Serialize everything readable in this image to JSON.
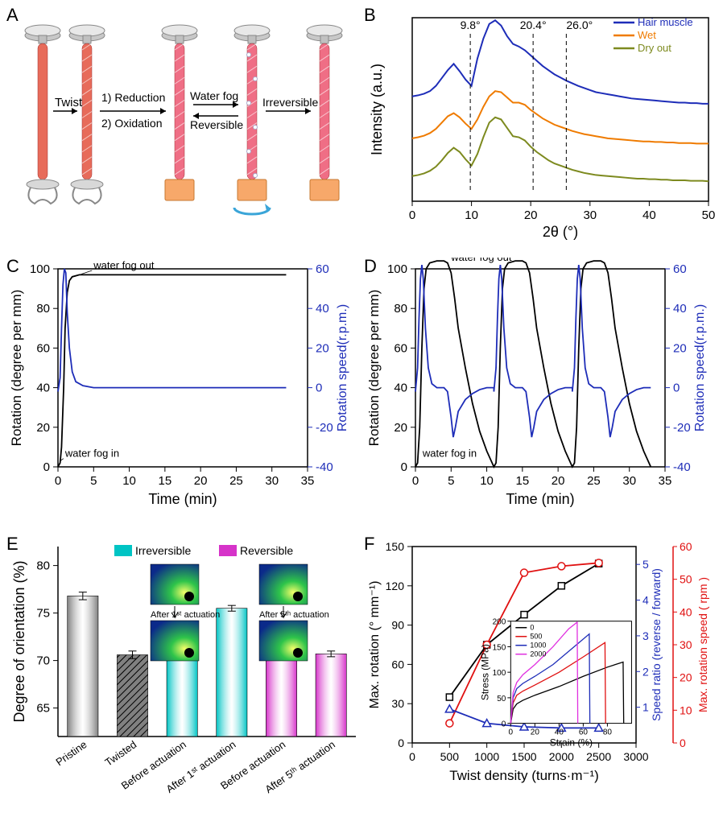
{
  "panels": {
    "A": {
      "label": "A",
      "arrows": [
        {
          "label": "Twist"
        },
        {
          "label_top": "1) Reduction",
          "label_bottom": "2) Oxidation"
        },
        {
          "label_top": "Water fog",
          "label_bottom": "Reversible"
        },
        {
          "label": "Irreversible"
        }
      ]
    },
    "B": {
      "label": "B",
      "type": "xrd-line",
      "xlabel": "2θ (°)",
      "ylabel": "Intensity (a.u.)",
      "xlim": [
        0,
        50
      ],
      "xticks": [
        0,
        10,
        20,
        30,
        40,
        50
      ],
      "peaks": [
        "9.8°",
        "20.4°",
        "26.0°"
      ],
      "peak_x": [
        9.8,
        20.4,
        26.0
      ],
      "legend": [
        {
          "label": "Hair muscle",
          "color": "#1e2db8"
        },
        {
          "label": "Wet",
          "color": "#ef7b00"
        },
        {
          "label": "Dry out",
          "color": "#7d8a1f"
        }
      ],
      "curves": {
        "hair": {
          "color": "#1e2db8",
          "offset": 140,
          "y": [
            60,
            62,
            65,
            70,
            80,
            95,
            110,
            122,
            108,
            92,
            80,
            132,
            170,
            198,
            205,
            195,
            175,
            160,
            155,
            148,
            138,
            128,
            118,
            110,
            102,
            96,
            90,
            85,
            80,
            76,
            72,
            68,
            66,
            64,
            62,
            60,
            58,
            56,
            55,
            54,
            53,
            52,
            51,
            50,
            49,
            48,
            48,
            47,
            47,
            46,
            46
          ]
        },
        "wet": {
          "color": "#ef7b00",
          "offset": 70,
          "y": [
            50,
            52,
            55,
            60,
            68,
            80,
            92,
            98,
            90,
            78,
            68,
            86,
            110,
            130,
            140,
            138,
            128,
            118,
            118,
            114,
            104,
            96,
            88,
            82,
            76,
            72,
            68,
            64,
            61,
            58,
            56,
            54,
            52,
            50,
            49,
            48,
            47,
            46,
            45,
            44,
            44,
            43,
            43,
            42,
            42,
            41,
            41,
            41,
            40,
            40,
            40
          ]
        },
        "dry": {
          "color": "#7d8a1f",
          "offset": 0,
          "y": [
            48,
            50,
            53,
            58,
            66,
            78,
            92,
            102,
            94,
            80,
            68,
            90,
            122,
            150,
            160,
            156,
            140,
            124,
            122,
            116,
            104,
            94,
            86,
            78,
            72,
            68,
            64,
            60,
            57,
            54,
            52,
            50,
            49,
            48,
            47,
            46,
            45,
            44,
            43,
            43,
            42,
            42,
            41,
            41,
            40,
            40,
            40,
            39,
            39,
            39,
            38
          ]
        }
      },
      "background": "#ffffff",
      "axis_color": "#000000",
      "dash_color": "#000000"
    },
    "C": {
      "label": "C",
      "type": "dual-axis-line",
      "xlabel": "Time (min)",
      "ylabel_left": "Rotation (degree per mm)",
      "ylabel_right": "Rotation speed(r.p.m.)",
      "xlim": [
        0,
        35
      ],
      "xticks": [
        0,
        5,
        10,
        15,
        20,
        25,
        30,
        35
      ],
      "ylim_left": [
        0,
        100
      ],
      "yticks_left": [
        0,
        20,
        40,
        60,
        80,
        100
      ],
      "ylim_right": [
        -40,
        60
      ],
      "yticks_right": [
        -40,
        -20,
        0,
        20,
        40,
        60
      ],
      "left_color": "#000000",
      "right_color": "#1e2db8",
      "annotations": [
        {
          "text": "water fog out",
          "x": 5,
          "y_left": 100,
          "line_to": [
            2.2,
            96
          ]
        },
        {
          "text": "water fog in",
          "x": 1,
          "y_left": 5,
          "line_to": [
            0.3,
            3
          ]
        }
      ],
      "rotation": [
        [
          0,
          0
        ],
        [
          0.3,
          2
        ],
        [
          0.5,
          10
        ],
        [
          0.8,
          40
        ],
        [
          1.0,
          70
        ],
        [
          1.3,
          88
        ],
        [
          1.6,
          94
        ],
        [
          2.0,
          96
        ],
        [
          3,
          97
        ],
        [
          5,
          97
        ],
        [
          10,
          97
        ],
        [
          20,
          97
        ],
        [
          30,
          97
        ],
        [
          32,
          97
        ]
      ],
      "speed": [
        [
          0,
          -2
        ],
        [
          0.3,
          5
        ],
        [
          0.5,
          30
        ],
        [
          0.7,
          52
        ],
        [
          0.9,
          60
        ],
        [
          1.1,
          58
        ],
        [
          1.3,
          38
        ],
        [
          1.6,
          20
        ],
        [
          2.0,
          8
        ],
        [
          2.5,
          3
        ],
        [
          3.5,
          1
        ],
        [
          5,
          0
        ],
        [
          10,
          0
        ],
        [
          20,
          0
        ],
        [
          30,
          0
        ],
        [
          32,
          0
        ]
      ]
    },
    "D": {
      "label": "D",
      "type": "dual-axis-line-cyclic",
      "xlabel": "Time (min)",
      "ylabel_left": "Rotation (degree per mm)",
      "ylabel_right": "Rotation speed(r.p.m.)",
      "xlim": [
        0,
        35
      ],
      "xticks": [
        0,
        5,
        10,
        15,
        20,
        25,
        30,
        35
      ],
      "ylim_left": [
        0,
        100
      ],
      "yticks_left": [
        0,
        20,
        40,
        60,
        80,
        100
      ],
      "ylim_right": [
        -40,
        60
      ],
      "yticks_right": [
        -40,
        -20,
        0,
        20,
        40,
        60
      ],
      "left_color": "#000000",
      "right_color": "#1e2db8",
      "annotations": [
        {
          "text": "water fog out",
          "x": 5,
          "y_left": 104
        },
        {
          "text": "water fog in",
          "x": 1,
          "y_left": 5
        }
      ],
      "cycle_period": 11,
      "rotation_cycle": [
        [
          0,
          0
        ],
        [
          0.3,
          2
        ],
        [
          0.6,
          20
        ],
        [
          0.9,
          60
        ],
        [
          1.2,
          90
        ],
        [
          1.5,
          100
        ],
        [
          2.0,
          103
        ],
        [
          3.0,
          104
        ],
        [
          4.0,
          104
        ],
        [
          4.5,
          103
        ],
        [
          5.0,
          98
        ],
        [
          5.5,
          85
        ],
        [
          6.0,
          70
        ],
        [
          7.0,
          50
        ],
        [
          8.0,
          32
        ],
        [
          9.0,
          18
        ],
        [
          10.0,
          8
        ],
        [
          11.0,
          0
        ]
      ],
      "speed_cycle": [
        [
          0,
          -2
        ],
        [
          0.3,
          10
        ],
        [
          0.5,
          35
        ],
        [
          0.7,
          55
        ],
        [
          0.9,
          62
        ],
        [
          1.1,
          55
        ],
        [
          1.4,
          30
        ],
        [
          1.8,
          10
        ],
        [
          2.3,
          2
        ],
        [
          3.0,
          0
        ],
        [
          4.0,
          0
        ],
        [
          4.5,
          -2
        ],
        [
          5.0,
          -15
        ],
        [
          5.3,
          -25
        ],
        [
          5.6,
          -20
        ],
        [
          6.0,
          -12
        ],
        [
          7.0,
          -6
        ],
        [
          8.0,
          -3
        ],
        [
          9.0,
          -1
        ],
        [
          10.0,
          0
        ],
        [
          11.0,
          0
        ]
      ]
    },
    "E": {
      "label": "E",
      "type": "bar",
      "ylabel": "Degree of orientation (%)",
      "ylim": [
        62,
        82
      ],
      "yticks": [
        65,
        70,
        75,
        80
      ],
      "legend": [
        {
          "label": "Irreversible",
          "color": "#00c4c4"
        },
        {
          "label": "Reversible",
          "color": "#d633c9"
        }
      ],
      "bars": [
        {
          "label": "Pristine",
          "value": 76.8,
          "err": 0.4,
          "color": "#808080",
          "hatched": false
        },
        {
          "label": "Twisted",
          "value": 70.6,
          "err": 0.4,
          "color": "#606060",
          "hatched": true
        },
        {
          "label": "Before actuation",
          "value": 70.6,
          "err": 0.3,
          "color": "#00c4c4",
          "hatched": false
        },
        {
          "label": "After 1ˢᵗ actuation",
          "value": 75.5,
          "err": 0.3,
          "color": "#00c4c4",
          "hatched": false
        },
        {
          "label": "Before actuation",
          "value": 70.7,
          "err": 0.3,
          "color": "#d633c9",
          "hatched": false
        },
        {
          "label": "After 5ᵗʰ actuation",
          "value": 70.7,
          "err": 0.3,
          "color": "#d633c9",
          "hatched": false
        }
      ],
      "inset_labels": [
        "After 1ˢᵗ actuation",
        "After 5ᵗʰ actuation"
      ],
      "inset_colormap": {
        "low": "#0b2a8a",
        "mid": "#2ec44a",
        "high": "#f6ff6a"
      }
    },
    "F": {
      "label": "F",
      "type": "triple-axis",
      "xlabel": "Twist density (turns·m⁻¹)",
      "ylabel_left": "Max. rotation (° mm⁻¹)",
      "ylabel_right1": "Speed ratio (reverse / forward)",
      "ylabel_right2": "Max. rotation speed ( rpm )",
      "xlim": [
        0,
        3000
      ],
      "xticks": [
        0,
        500,
        1000,
        1500,
        2000,
        2500,
        3000
      ],
      "ylim_left": [
        0,
        150
      ],
      "yticks_left": [
        0,
        30,
        60,
        90,
        120,
        150
      ],
      "ylim_r1": [
        0,
        5.5
      ],
      "yticks_r1": [
        1,
        2,
        3,
        4,
        5
      ],
      "ylim_r2": [
        0,
        60
      ],
      "yticks_r2": [
        0,
        10,
        20,
        30,
        40,
        50,
        60
      ],
      "left_color": "#000000",
      "r1_color": "#1e2db8",
      "r2_color": "#e01010",
      "series": {
        "maxrot": {
          "color": "#000000",
          "marker": "square",
          "pts": [
            [
              500,
              35
            ],
            [
              1000,
              75
            ],
            [
              1500,
              98
            ],
            [
              2000,
              120
            ],
            [
              2500,
              137
            ]
          ]
        },
        "ratio": {
          "color": "#1e2db8",
          "marker": "triangle",
          "pts": [
            [
              500,
              0.95
            ],
            [
              1000,
              0.55
            ],
            [
              1500,
              0.45
            ],
            [
              2000,
              0.42
            ],
            [
              2500,
              0.42
            ]
          ]
        },
        "speed": {
          "color": "#e01010",
          "marker": "circle",
          "pts": [
            [
              500,
              6
            ],
            [
              1000,
              30
            ],
            [
              1500,
              52
            ],
            [
              2000,
              54
            ],
            [
              2500,
              55
            ]
          ]
        }
      },
      "inset": {
        "xlabel": "Strain (%)",
        "ylabel": "Stress (MPa)",
        "xlim": [
          0,
          100
        ],
        "xticks": [
          0,
          20,
          40,
          60,
          80
        ],
        "ylim": [
          0,
          200
        ],
        "yticks": [
          0,
          50,
          100,
          150,
          200
        ],
        "legend": [
          {
            "label": "0",
            "color": "#000000"
          },
          {
            "label": "500",
            "color": "#e01010"
          },
          {
            "label": "1000",
            "color": "#1e2db8"
          },
          {
            "label": "2000",
            "color": "#e030e0"
          }
        ],
        "curves": {
          "0": {
            "color": "#000000",
            "pts": [
              [
                0,
                0
              ],
              [
                2,
                28
              ],
              [
                5,
                38
              ],
              [
                10,
                45
              ],
              [
                20,
                55
              ],
              [
                40,
                72
              ],
              [
                60,
                92
              ],
              [
                80,
                110
              ],
              [
                93,
                120
              ],
              [
                93.5,
                0
              ]
            ]
          },
          "500": {
            "color": "#e01010",
            "pts": [
              [
                0,
                0
              ],
              [
                2,
                40
              ],
              [
                5,
                55
              ],
              [
                10,
                63
              ],
              [
                20,
                75
              ],
              [
                40,
                100
              ],
              [
                60,
                130
              ],
              [
                78,
                158
              ],
              [
                78.5,
                0
              ]
            ]
          },
          "1000": {
            "color": "#1e2db8",
            "pts": [
              [
                0,
                0
              ],
              [
                2,
                50
              ],
              [
                5,
                68
              ],
              [
                10,
                78
              ],
              [
                20,
                92
              ],
              [
                35,
                115
              ],
              [
                50,
                145
              ],
              [
                65,
                175
              ],
              [
                65.5,
                0
              ]
            ]
          },
          "2000": {
            "color": "#e030e0",
            "pts": [
              [
                0,
                0
              ],
              [
                2,
                60
              ],
              [
                5,
                80
              ],
              [
                10,
                95
              ],
              [
                20,
                115
              ],
              [
                35,
                150
              ],
              [
                48,
                185
              ],
              [
                55,
                198
              ],
              [
                55.5,
                0
              ]
            ]
          }
        }
      }
    }
  }
}
